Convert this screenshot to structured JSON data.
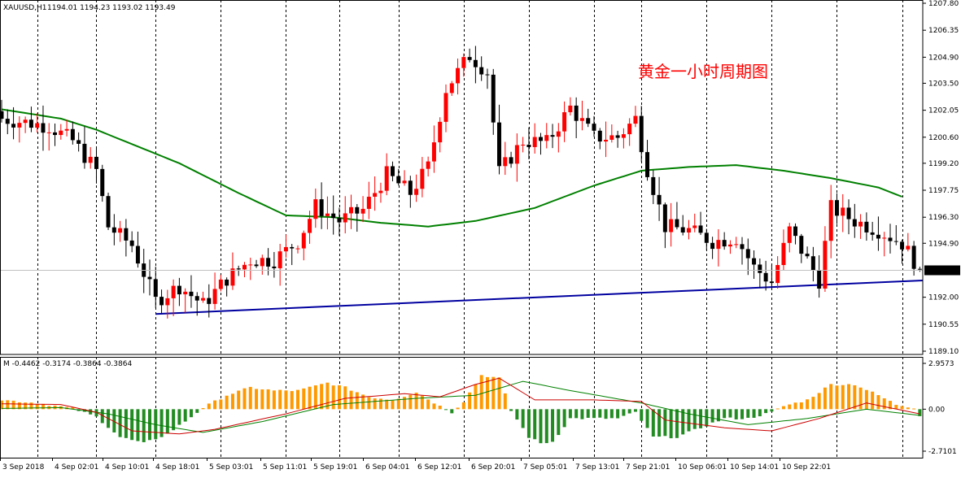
{
  "window": {
    "symbol_label": "XAUUSD,H1",
    "ohlc_label": "1194.01 1194.23 1193.02 1193.49",
    "annotation": "黄金一小时周期图"
  },
  "colors": {
    "bull": "#ff0000",
    "bear": "#000000",
    "ma": "#008000",
    "trendline": "#0000a0",
    "hist_pos": "#ff9900",
    "hist_neg": "#228B22",
    "signal_red": "#cc0000",
    "signal_green": "#008000"
  },
  "chart_data": [
    {
      "type": "candlestick",
      "title": "XAUUSD,H1",
      "y_ticks": [
        1207.8,
        1206.35,
        1204.9,
        1203.5,
        1202.05,
        1200.6,
        1199.2,
        1197.75,
        1196.3,
        1194.9,
        1193.49,
        1192.0,
        1190.55,
        1189.1
      ],
      "ylim": [
        1189.1,
        1207.8
      ],
      "current_price": 1193.49,
      "x_labels": [
        "3 Sep 2018",
        "4 Sep 02:01",
        "4 Sep 10:01",
        "4 Sep 18:01",
        "5 Sep 03:01",
        "5 Sep 11:01",
        "5 Sep 19:01",
        "6 Sep 04:01",
        "6 Sep 12:01",
        "6 Sep 20:01",
        "7 Sep 05:01",
        "7 Sep 13:01",
        "7 Sep 21:01",
        "10 Sep 06:01",
        "10 Sep 14:01",
        "10 Sep 22:01"
      ],
      "close_anchors": [
        [
          0,
          1201.6
        ],
        [
          8,
          1201.2
        ],
        [
          12,
          1200.4
        ],
        [
          16,
          1198.8
        ],
        [
          18,
          1195.8
        ],
        [
          22,
          1194.8
        ],
        [
          26,
          1191.8
        ],
        [
          30,
          1192.6
        ],
        [
          34,
          1191.6
        ],
        [
          38,
          1193.0
        ],
        [
          42,
          1194.0
        ],
        [
          46,
          1194.0
        ],
        [
          50,
          1195.0
        ],
        [
          53,
          1196.9
        ],
        [
          57,
          1196.1
        ],
        [
          61,
          1196.7
        ],
        [
          65,
          1198.6
        ],
        [
          69,
          1197.6
        ],
        [
          72,
          1199.0
        ],
        [
          75,
          1203.2
        ],
        [
          79,
          1205.0
        ],
        [
          82,
          1204.1
        ],
        [
          84,
          1198.7
        ],
        [
          88,
          1200.4
        ],
        [
          92,
          1200.3
        ],
        [
          96,
          1202.2
        ],
        [
          100,
          1200.6
        ],
        [
          104,
          1200.6
        ],
        [
          107,
          1201.6
        ],
        [
          109,
          1198.9
        ],
        [
          112,
          1195.8
        ],
        [
          116,
          1195.6
        ],
        [
          120,
          1195.0
        ],
        [
          124,
          1195.2
        ],
        [
          127,
          1193.6
        ],
        [
          130,
          1192.8
        ],
        [
          133,
          1195.6
        ],
        [
          136,
          1194.0
        ],
        [
          138,
          1192.9
        ],
        [
          140,
          1196.8
        ],
        [
          144,
          1196.1
        ],
        [
          148,
          1195.6
        ],
        [
          152,
          1194.9
        ],
        [
          155,
          1193.49
        ]
      ],
      "ma_anchors": [
        [
          0,
          1202.1
        ],
        [
          10,
          1201.6
        ],
        [
          16,
          1201.0
        ],
        [
          30,
          1199.2
        ],
        [
          40,
          1197.6
        ],
        [
          48,
          1196.4
        ],
        [
          56,
          1196.3
        ],
        [
          64,
          1196.0
        ],
        [
          72,
          1195.8
        ],
        [
          80,
          1196.1
        ],
        [
          90,
          1196.8
        ],
        [
          100,
          1198.0
        ],
        [
          108,
          1198.8
        ],
        [
          116,
          1199.0
        ],
        [
          124,
          1199.1
        ],
        [
          132,
          1198.8
        ],
        [
          140,
          1198.4
        ],
        [
          148,
          1197.9
        ],
        [
          152,
          1197.4
        ]
      ],
      "trendline": {
        "from": [
          26,
          1191.1
        ],
        "to": [
          158,
          1192.9
        ]
      }
    },
    {
      "type": "bar",
      "title": "M -0.4462 -0.3174 -0.3864 -0.3864",
      "y_ticks": [
        2.9573,
        0.0,
        -2.7101
      ],
      "ylim": [
        -2.7101,
        2.9573
      ],
      "hist_anchors": [
        [
          0,
          0.6
        ],
        [
          6,
          0.4
        ],
        [
          12,
          0.05
        ],
        [
          16,
          -0.5
        ],
        [
          20,
          -1.8
        ],
        [
          24,
          -2.2
        ],
        [
          28,
          -1.6
        ],
        [
          32,
          -0.5
        ],
        [
          34,
          0.1
        ],
        [
          38,
          0.9
        ],
        [
          42,
          1.4
        ],
        [
          46,
          1.2
        ],
        [
          50,
          1.2
        ],
        [
          55,
          1.7
        ],
        [
          58,
          1.4
        ],
        [
          62,
          0.8
        ],
        [
          66,
          0.6
        ],
        [
          70,
          1.1
        ],
        [
          74,
          0.2
        ],
        [
          76,
          -0.2
        ],
        [
          78,
          0.5
        ],
        [
          81,
          2.2
        ],
        [
          84,
          2.0
        ],
        [
          86,
          -0.1
        ],
        [
          89,
          -1.8
        ],
        [
          91,
          -2.2
        ],
        [
          93,
          -2.1
        ],
        [
          96,
          -0.6
        ],
        [
          100,
          -0.6
        ],
        [
          104,
          -0.6
        ],
        [
          107,
          -0.2
        ],
        [
          110,
          -1.8
        ],
        [
          114,
          -1.8
        ],
        [
          118,
          -1.2
        ],
        [
          122,
          -0.6
        ],
        [
          126,
          -0.6
        ],
        [
          130,
          -0.2
        ],
        [
          132,
          0.2
        ],
        [
          136,
          0.6
        ],
        [
          140,
          1.6
        ],
        [
          144,
          1.6
        ],
        [
          148,
          0.9
        ],
        [
          151,
          0.3
        ],
        [
          154,
          0.1
        ],
        [
          155,
          -0.4
        ]
      ],
      "signal_red_anchors": [
        [
          0,
          0.35
        ],
        [
          10,
          0.3
        ],
        [
          16,
          -0.2
        ],
        [
          22,
          -1.4
        ],
        [
          30,
          -1.6
        ],
        [
          36,
          -1.3
        ],
        [
          48,
          -0.3
        ],
        [
          58,
          0.7
        ],
        [
          68,
          1.0
        ],
        [
          74,
          0.8
        ],
        [
          80,
          1.6
        ],
        [
          84,
          2.0
        ],
        [
          90,
          0.6
        ],
        [
          100,
          0.6
        ],
        [
          108,
          0.5
        ],
        [
          112,
          -0.7
        ],
        [
          122,
          -1.2
        ],
        [
          130,
          -1.4
        ],
        [
          138,
          -0.6
        ],
        [
          146,
          0.4
        ],
        [
          155,
          -0.3
        ]
      ],
      "signal_green_anchors": [
        [
          0,
          0.05
        ],
        [
          10,
          0.1
        ],
        [
          18,
          -0.3
        ],
        [
          26,
          -1.0
        ],
        [
          34,
          -1.5
        ],
        [
          44,
          -0.8
        ],
        [
          56,
          0.3
        ],
        [
          70,
          0.7
        ],
        [
          80,
          0.9
        ],
        [
          88,
          1.8
        ],
        [
          96,
          1.2
        ],
        [
          108,
          0.4
        ],
        [
          116,
          -0.3
        ],
        [
          126,
          -1.0
        ],
        [
          136,
          -0.6
        ],
        [
          146,
          0.0
        ],
        [
          155,
          -0.4
        ]
      ]
    }
  ]
}
